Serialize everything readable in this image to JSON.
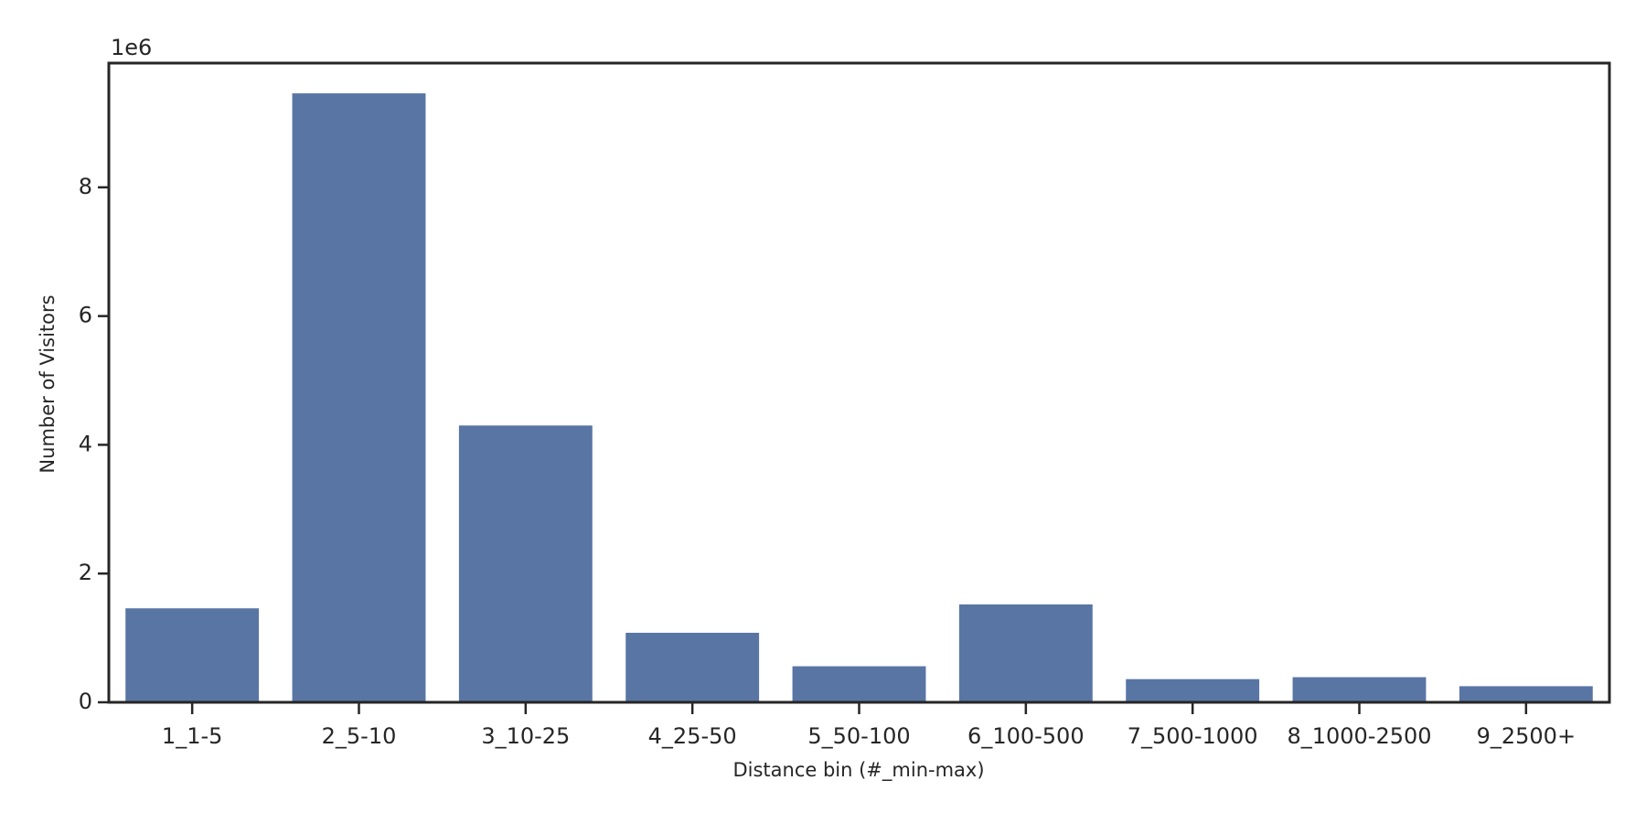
{
  "chart_data": {
    "type": "bar",
    "x_label": "Distance bin (#_min-max)",
    "y_label": "Number of Visitors",
    "y_offset_label": "1e6",
    "categories": [
      "1_1-5",
      "2_5-10",
      "3_10-25",
      "4_25-50",
      "5_50-100",
      "6_100-500",
      "7_500-1000",
      "8_1000-2500",
      "9_2500+"
    ],
    "values": [
      1.46,
      9.46,
      4.3,
      1.08,
      0.56,
      1.52,
      0.36,
      0.39,
      0.25
    ],
    "color": "#5875a4",
    "ylim": [
      0,
      9.93
    ],
    "yticks": [
      0,
      2,
      4,
      6,
      8
    ],
    "grid": false
  }
}
